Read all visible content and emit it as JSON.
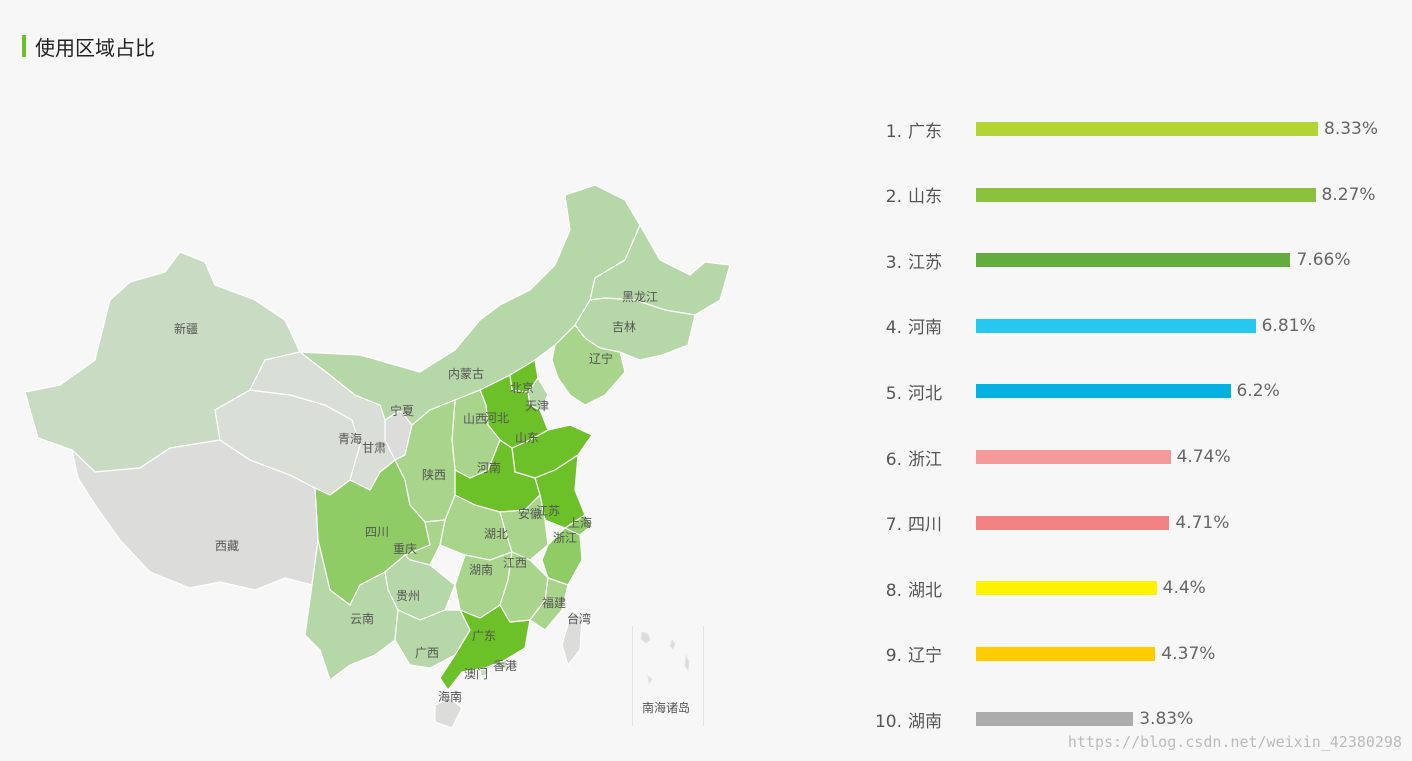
{
  "title": "使用区域占比",
  "accent_color": "#6cc128",
  "watermark": "https://blog.csdn.net/weixin_42380298",
  "chart_data": [
    {
      "type": "map",
      "title": "",
      "provinces": [
        {
          "name": "广东",
          "value": 8.33,
          "color": "#6cc128"
        },
        {
          "name": "山东",
          "value": 8.27,
          "color": "#6cc128"
        },
        {
          "name": "江苏",
          "value": 7.66,
          "color": "#6cc128"
        },
        {
          "name": "河南",
          "value": 6.81,
          "color": "#6cc128"
        },
        {
          "name": "河北",
          "value": 6.2,
          "color": "#6cc128"
        },
        {
          "name": "浙江",
          "value": 4.74,
          "color": "#8fcc65"
        },
        {
          "name": "四川",
          "value": 4.71,
          "color": "#8fcc65"
        },
        {
          "name": "湖北",
          "value": 4.4,
          "color": "#a8d58b"
        },
        {
          "name": "辽宁",
          "value": 4.37,
          "color": "#a8d58b"
        },
        {
          "name": "湖南",
          "value": 3.83,
          "color": "#a8d58b"
        },
        {
          "name": "新疆",
          "color": "#c9dcc3"
        },
        {
          "name": "西藏",
          "color": "#dcdddb"
        },
        {
          "name": "青海",
          "color": "#d9dfd6"
        },
        {
          "name": "甘肃",
          "color": "#d9dfd6"
        },
        {
          "name": "宁夏",
          "color": "#dcdddb"
        },
        {
          "name": "内蒙古",
          "color": "#b6d7a7"
        },
        {
          "name": "黑龙江",
          "color": "#b6d7a7"
        },
        {
          "name": "吉林",
          "color": "#b6d7a7"
        },
        {
          "name": "北京",
          "color": "#6cc128"
        },
        {
          "name": "天津",
          "color": "#b6d7a7"
        },
        {
          "name": "山西",
          "color": "#a8d58b"
        },
        {
          "name": "陕西",
          "color": "#a8d58b"
        },
        {
          "name": "安徽",
          "color": "#a8d58b"
        },
        {
          "name": "上海",
          "color": "#8fcc65"
        },
        {
          "name": "重庆",
          "color": "#a8d58b"
        },
        {
          "name": "贵州",
          "color": "#b6d7a7"
        },
        {
          "name": "云南",
          "color": "#b6d7a7"
        },
        {
          "name": "广西",
          "color": "#b6d7a7"
        },
        {
          "name": "江西",
          "color": "#a8d58b"
        },
        {
          "name": "福建",
          "color": "#a8d58b"
        },
        {
          "name": "台湾",
          "color": "#dcdddb"
        },
        {
          "name": "香港",
          "color": "#c9dcc3"
        },
        {
          "name": "澳门",
          "color": "#c9dcc3"
        },
        {
          "name": "海南",
          "color": "#dcdddb"
        },
        {
          "name": "南海诸岛",
          "color": "#dcdddb"
        }
      ]
    },
    {
      "type": "bar",
      "orientation": "horizontal",
      "title": "",
      "xlim": [
        0,
        8.33
      ],
      "series": [
        {
          "ranks": [
            "1.",
            "2.",
            "3.",
            "4.",
            "5.",
            "6.",
            "7.",
            "8.",
            "9.",
            "10."
          ],
          "categories": [
            "广东",
            "山东",
            "江苏",
            "河南",
            "河北",
            "浙江",
            "四川",
            "湖北",
            "辽宁",
            "湖南"
          ],
          "values": [
            8.33,
            8.27,
            7.66,
            6.81,
            6.2,
            4.74,
            4.71,
            4.4,
            4.37,
            3.83
          ],
          "labels": [
            "8.33%",
            "8.27%",
            "7.66%",
            "6.81%",
            "6.2%",
            "4.74%",
            "4.71%",
            "4.4%",
            "4.37%",
            "3.83%"
          ],
          "colors": [
            "#b4d433",
            "#8cc13f",
            "#63ad3e",
            "#26c8f0",
            "#04b1e0",
            "#f49a9a",
            "#f38285",
            "#fff200",
            "#ffcc00",
            "#acacac"
          ]
        }
      ]
    }
  ]
}
